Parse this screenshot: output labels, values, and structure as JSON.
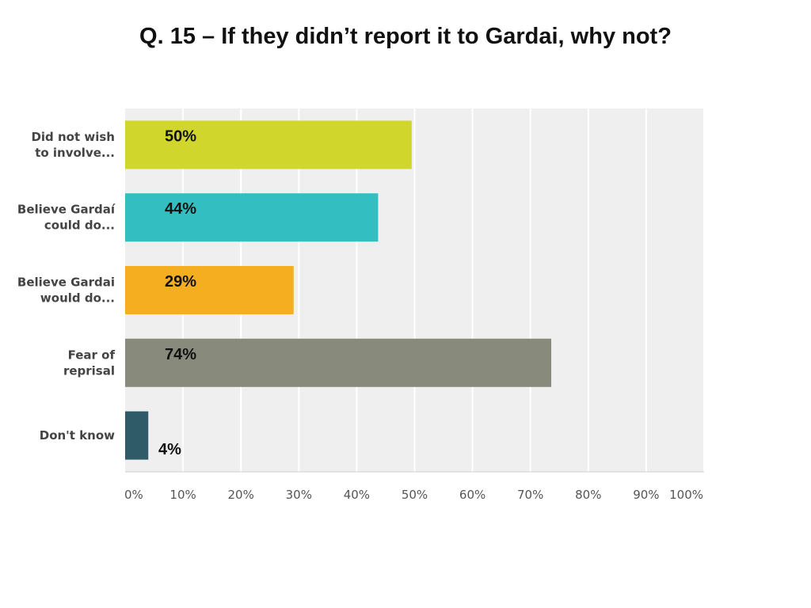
{
  "chart_data": {
    "type": "bar",
    "orientation": "horizontal",
    "title": "Q. 15 – If they didn’t report it to Gardai, why not?",
    "categories": [
      [
        "Did not wish",
        "to involve..."
      ],
      [
        "Believe Gardaí",
        "could do..."
      ],
      [
        "Believe Gardai",
        "would do..."
      ],
      [
        "Fear of",
        "reprisal"
      ],
      [
        "Don't know"
      ]
    ],
    "values": [
      49.5,
      43.7,
      29.1,
      73.6,
      4.0
    ],
    "data_labels": [
      "50%",
      "44%",
      "29%",
      "74%",
      "4%"
    ],
    "colors": [
      "#d0d62b",
      "#33bfc1",
      "#f4ae1f",
      "#888a7c",
      "#2f5a67"
    ],
    "xlim": [
      0,
      100
    ],
    "xticks": [
      0,
      10,
      20,
      30,
      40,
      50,
      60,
      70,
      80,
      90,
      100
    ],
    "xtick_labels": [
      "0%",
      "10%",
      "20%",
      "30%",
      "40%",
      "50%",
      "60%",
      "70%",
      "80%",
      "90%",
      "100%"
    ],
    "grid": true,
    "legend": "none",
    "plot_background": "#efefef"
  }
}
